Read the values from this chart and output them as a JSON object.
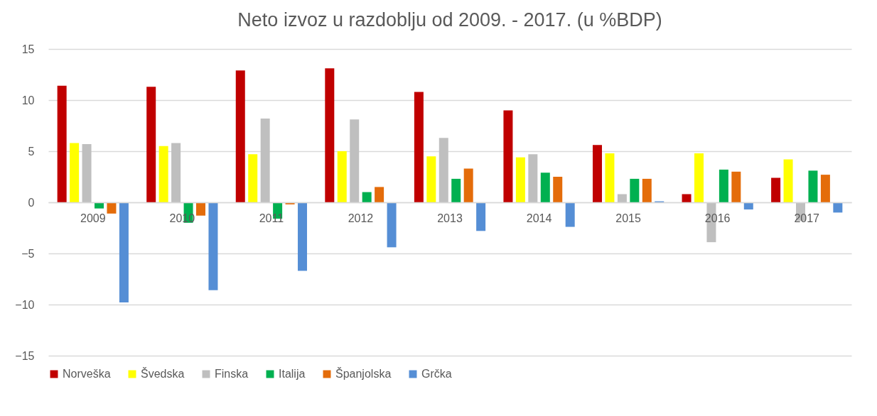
{
  "chart_data": {
    "type": "bar",
    "title": "Neto izvoz u razdoblju od 2009. - 2017. (u %BDP)",
    "categories": [
      "2009",
      "2010",
      "2011",
      "2012",
      "2013",
      "2014",
      "2015",
      "2016",
      "2017"
    ],
    "series": [
      {
        "name": "Norveška",
        "color": "#c00000",
        "values": [
          11.4,
          11.3,
          12.9,
          13.1,
          10.8,
          9.0,
          5.6,
          0.8,
          2.4
        ]
      },
      {
        "name": "Švedska",
        "color": "#ffff00",
        "values": [
          5.8,
          5.5,
          4.7,
          5.0,
          4.5,
          4.4,
          4.8,
          4.8,
          4.2
        ]
      },
      {
        "name": "Finska",
        "color": "#bfbfbf",
        "values": [
          5.7,
          5.8,
          8.2,
          8.1,
          6.3,
          4.7,
          0.8,
          -3.9,
          -1.8
        ]
      },
      {
        "name": "Italija",
        "color": "#00b050",
        "values": [
          -0.6,
          -2.0,
          -1.6,
          1.0,
          2.3,
          2.9,
          2.3,
          3.2,
          3.1
        ]
      },
      {
        "name": "Španjolska",
        "color": "#e46c0a",
        "values": [
          -1.1,
          -1.3,
          -0.2,
          1.5,
          3.3,
          2.5,
          2.3,
          3.0,
          2.7
        ]
      },
      {
        "name": "Grčka",
        "color": "#558ed5",
        "values": [
          -9.8,
          -8.6,
          -6.7,
          -4.4,
          -2.8,
          -2.4,
          0.1,
          -0.7,
          -1.0
        ]
      }
    ],
    "ylim": [
      -15,
      15
    ],
    "yticks": [
      -15,
      -10,
      -5,
      0,
      5,
      10,
      15
    ],
    "grid": "y",
    "legend": "bottom"
  }
}
